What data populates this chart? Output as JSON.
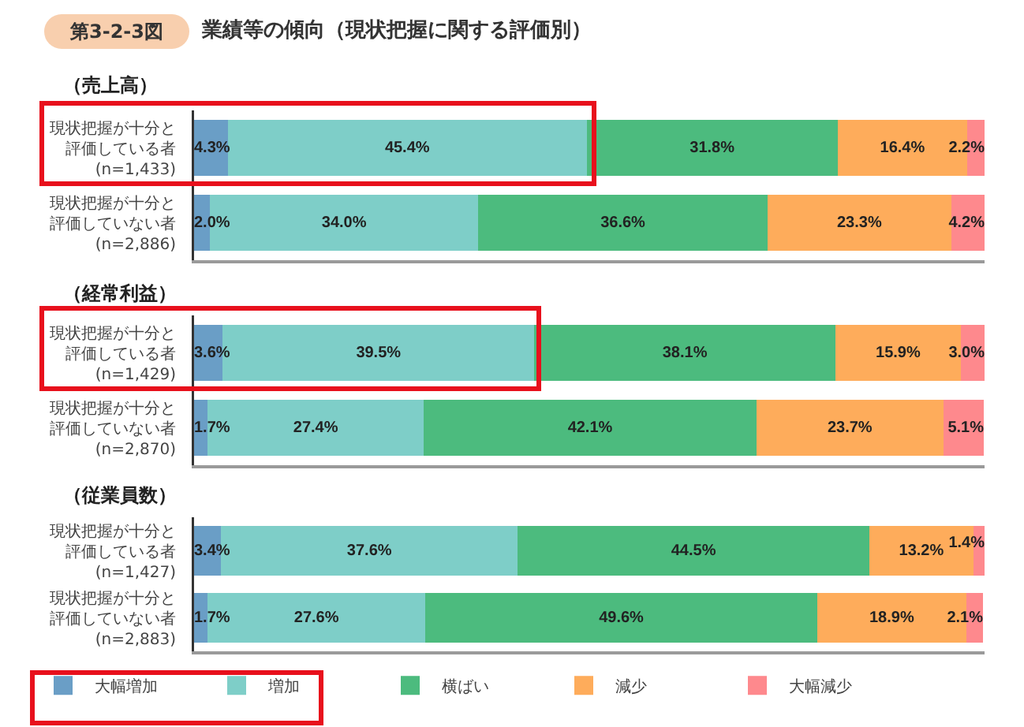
{
  "chart_data": [
    {
      "type": "bar",
      "orientation": "horizontal",
      "stacked": true,
      "title": "（売上高）",
      "annotations": [
        "第3-2-3図",
        "業績等の傾向（現状把握に関する評価別）"
      ],
      "tick_labels": "y",
      "categories": [
        "現状把握が十分と評価している者(n=1,433)",
        "現状把握が十分と評価していない者(n=2,886)"
      ],
      "series": [
        {
          "color": "#6a9ec6",
          "values": [
            4.3,
            2.0
          ],
          "value_labels": [
            "4.3%",
            "2.0%"
          ]
        },
        {
          "color": "#7ecec8",
          "values": [
            45.4,
            34.0
          ],
          "value_labels": [
            "45.4%",
            "34.0%"
          ]
        },
        {
          "color": "#4cbb7e",
          "values": [
            31.8,
            36.6
          ],
          "value_labels": [
            "31.8%",
            "36.6%"
          ]
        },
        {
          "color": "#feac5b",
          "values": [
            16.4,
            23.3
          ],
          "value_labels": [
            "16.4%",
            "23.3%"
          ]
        },
        {
          "color": "#fe898d",
          "values": [
            2.2,
            4.2
          ],
          "value_labels": [
            "2.2%",
            "4.2%"
          ]
        }
      ]
    },
    {
      "type": "bar",
      "orientation": "horizontal",
      "stacked": true,
      "title": "（経常利益）",
      "tick_labels": "y",
      "categories": [
        "現状把握が十分と評価している者(n=1,429)",
        "現状把握が十分と評価していない者(n=2,870)"
      ],
      "series": [
        {
          "color": "#6a9ec6",
          "values": [
            3.6,
            1.7
          ],
          "value_labels": [
            "3.6%",
            "1.7%"
          ]
        },
        {
          "color": "#7ecec8",
          "values": [
            39.5,
            27.4
          ],
          "value_labels": [
            "39.5%",
            "27.4%"
          ]
        },
        {
          "color": "#4cbb7e",
          "values": [
            38.1,
            42.1
          ],
          "value_labels": [
            "38.1%",
            "42.1%"
          ]
        },
        {
          "color": "#feac5b",
          "values": [
            15.9,
            23.7
          ],
          "value_labels": [
            "15.9%",
            "23.7%"
          ]
        },
        {
          "color": "#fe898d",
          "values": [
            3.0,
            5.1
          ],
          "value_labels": [
            "3.0%",
            "5.1%"
          ]
        }
      ]
    },
    {
      "type": "bar",
      "orientation": "horizontal",
      "stacked": true,
      "title": "（従業員数）",
      "tick_labels": "y",
      "legend": "bottom",
      "categories": [
        "現状把握が十分と評価している者(n=1,427)",
        "現状把握が十分と評価していない者(n=2,883)"
      ],
      "series": [
        {
          "name": "大幅増加",
          "color": "#6a9ec6",
          "values": [
            3.4,
            1.7
          ],
          "value_labels": [
            "3.4%",
            "1.7%"
          ]
        },
        {
          "name": "増加",
          "color": "#7ecec8",
          "values": [
            37.6,
            27.6
          ],
          "value_labels": [
            "37.6%",
            "27.6%"
          ]
        },
        {
          "name": "横ばい",
          "color": "#4cbb7e",
          "values": [
            44.5,
            49.6
          ],
          "value_labels": [
            "44.5%",
            "49.6%"
          ]
        },
        {
          "name": "減少",
          "color": "#feac5b",
          "values": [
            13.2,
            18.9
          ],
          "value_labels": [
            "13.2%",
            "18.9%"
          ]
        },
        {
          "name": "大幅減少",
          "color": "#fe898d",
          "values": [
            1.4,
            2.1
          ],
          "value_labels": [
            "1.4%",
            "2.1%"
          ]
        }
      ]
    }
  ]
}
